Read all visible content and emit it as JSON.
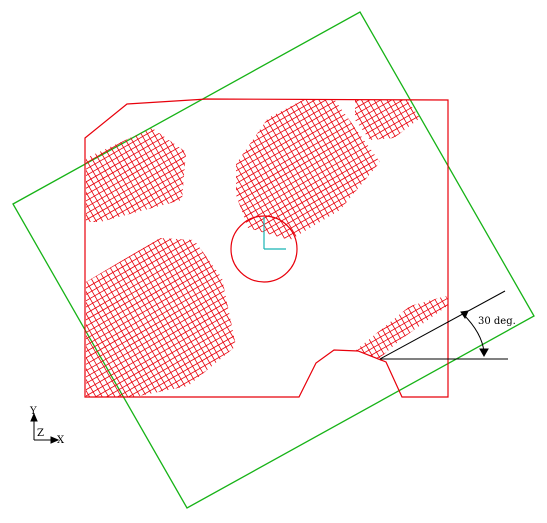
{
  "figure": {
    "angle_label": "30 deg.",
    "axes": {
      "y_label": "Y",
      "z_label": "Z",
      "x_label": "X"
    }
  },
  "colors": {
    "part_outline": "#e8000b",
    "hatch": "#e8000b",
    "rotated_frame": "#17b317",
    "local_axes": "#17b3b3",
    "annotation": "#000000"
  }
}
